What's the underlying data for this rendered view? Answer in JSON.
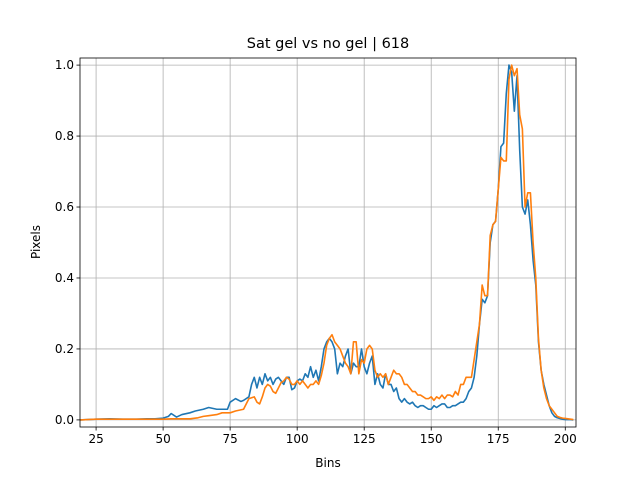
{
  "chart_data": {
    "type": "line",
    "title": "Sat gel vs no gel | 618",
    "xlabel": "Bins",
    "ylabel": "Pixels",
    "xlim": [
      19,
      204
    ],
    "ylim": [
      -0.02,
      1.02
    ],
    "xticks": [
      25,
      50,
      75,
      100,
      125,
      150,
      175,
      200
    ],
    "yticks": [
      0.0,
      0.2,
      0.4,
      0.6,
      0.8,
      1.0
    ],
    "xtick_labels": [
      "25",
      "50",
      "75",
      "100",
      "125",
      "150",
      "175",
      "200"
    ],
    "ytick_labels": [
      "0.0",
      "0.2",
      "0.4",
      "0.6",
      "0.8",
      "1.0"
    ],
    "grid": true,
    "series": [
      {
        "color": "#1f77b4",
        "x": [
          19,
          25,
          30,
          35,
          40,
          44,
          47,
          50,
          52,
          53,
          55,
          57,
          60,
          62,
          65,
          67,
          70,
          72,
          74,
          75,
          77,
          79,
          80,
          82,
          83,
          84,
          85,
          86,
          87,
          88,
          89,
          90,
          91,
          92,
          93,
          94,
          95,
          96,
          97,
          98,
          99,
          100,
          101,
          102,
          103,
          104,
          105,
          106,
          107,
          108,
          109,
          110,
          111,
          112,
          113,
          114,
          115,
          116,
          117,
          118,
          119,
          120,
          121,
          122,
          123,
          124,
          125,
          126,
          127,
          128,
          129,
          130,
          131,
          132,
          133,
          134,
          135,
          136,
          137,
          138,
          139,
          140,
          141,
          142,
          143,
          144,
          145,
          146,
          147,
          148,
          149,
          150,
          151,
          152,
          153,
          154,
          155,
          156,
          157,
          158,
          159,
          160,
          161,
          162,
          163,
          164,
          165,
          166,
          167,
          168,
          169,
          170,
          171,
          172,
          173,
          174,
          175,
          176,
          177,
          178,
          179,
          180,
          181,
          182,
          183,
          184,
          185,
          186,
          187,
          188,
          189,
          190,
          191,
          192,
          193,
          194,
          195,
          196,
          197,
          198,
          199,
          200,
          201,
          202,
          203
        ],
        "values": [
          0.0,
          0.002,
          0.003,
          0.002,
          0.002,
          0.003,
          0.003,
          0.005,
          0.01,
          0.018,
          0.008,
          0.015,
          0.02,
          0.025,
          0.03,
          0.035,
          0.03,
          0.03,
          0.03,
          0.05,
          0.06,
          0.052,
          0.055,
          0.065,
          0.1,
          0.12,
          0.09,
          0.12,
          0.1,
          0.13,
          0.11,
          0.12,
          0.1,
          0.115,
          0.12,
          0.11,
          0.1,
          0.12,
          0.12,
          0.085,
          0.09,
          0.11,
          0.115,
          0.11,
          0.13,
          0.12,
          0.15,
          0.12,
          0.14,
          0.11,
          0.15,
          0.2,
          0.22,
          0.23,
          0.22,
          0.2,
          0.13,
          0.16,
          0.15,
          0.18,
          0.2,
          0.13,
          0.16,
          0.15,
          0.15,
          0.2,
          0.15,
          0.13,
          0.16,
          0.18,
          0.1,
          0.13,
          0.1,
          0.09,
          0.13,
          0.1,
          0.1,
          0.08,
          0.09,
          0.06,
          0.05,
          0.06,
          0.05,
          0.045,
          0.05,
          0.04,
          0.035,
          0.04,
          0.04,
          0.035,
          0.03,
          0.03,
          0.04,
          0.035,
          0.04,
          0.045,
          0.045,
          0.035,
          0.035,
          0.04,
          0.04,
          0.045,
          0.05,
          0.05,
          0.06,
          0.08,
          0.09,
          0.12,
          0.18,
          0.27,
          0.34,
          0.33,
          0.35,
          0.5,
          0.55,
          0.56,
          0.65,
          0.77,
          0.78,
          0.92,
          1.0,
          0.98,
          0.87,
          0.97,
          0.76,
          0.6,
          0.58,
          0.62,
          0.55,
          0.45,
          0.38,
          0.22,
          0.14,
          0.1,
          0.07,
          0.04,
          0.02,
          0.01,
          0.006,
          0.004,
          0.002,
          0.001,
          0.001,
          0.001,
          0.0
        ]
      },
      {
        "color": "#ff7f0e",
        "x": [
          19,
          25,
          30,
          35,
          40,
          44,
          47,
          50,
          53,
          55,
          58,
          60,
          63,
          65,
          67,
          70,
          72,
          75,
          77,
          80,
          82,
          84,
          85,
          86,
          87,
          88,
          89,
          90,
          91,
          92,
          93,
          94,
          95,
          96,
          97,
          98,
          99,
          100,
          101,
          102,
          103,
          104,
          105,
          106,
          107,
          108,
          109,
          110,
          111,
          112,
          113,
          114,
          115,
          116,
          117,
          118,
          119,
          120,
          121,
          122,
          123,
          124,
          125,
          126,
          127,
          128,
          129,
          130,
          131,
          132,
          133,
          134,
          135,
          136,
          137,
          138,
          139,
          140,
          141,
          142,
          143,
          144,
          145,
          146,
          147,
          148,
          149,
          150,
          151,
          152,
          153,
          154,
          155,
          156,
          157,
          158,
          159,
          160,
          161,
          162,
          163,
          164,
          165,
          166,
          167,
          168,
          169,
          170,
          171,
          172,
          173,
          174,
          175,
          176,
          177,
          178,
          179,
          180,
          181,
          182,
          183,
          184,
          185,
          186,
          187,
          188,
          189,
          190,
          191,
          192,
          193,
          194,
          195,
          196,
          197,
          198,
          199,
          200,
          201,
          202,
          203
        ],
        "values": [
          0.0,
          0.002,
          0.002,
          0.002,
          0.002,
          0.002,
          0.002,
          0.002,
          0.003,
          0.003,
          0.003,
          0.003,
          0.006,
          0.01,
          0.012,
          0.015,
          0.02,
          0.02,
          0.025,
          0.03,
          0.06,
          0.065,
          0.05,
          0.045,
          0.065,
          0.09,
          0.1,
          0.095,
          0.08,
          0.075,
          0.09,
          0.105,
          0.11,
          0.12,
          0.115,
          0.1,
          0.1,
          0.11,
          0.1,
          0.11,
          0.1,
          0.09,
          0.1,
          0.1,
          0.11,
          0.1,
          0.125,
          0.16,
          0.21,
          0.23,
          0.24,
          0.22,
          0.21,
          0.2,
          0.18,
          0.16,
          0.15,
          0.13,
          0.22,
          0.22,
          0.13,
          0.17,
          0.16,
          0.2,
          0.21,
          0.2,
          0.14,
          0.12,
          0.13,
          0.12,
          0.13,
          0.1,
          0.12,
          0.14,
          0.13,
          0.13,
          0.12,
          0.1,
          0.1,
          0.09,
          0.08,
          0.08,
          0.07,
          0.07,
          0.065,
          0.06,
          0.06,
          0.065,
          0.055,
          0.065,
          0.06,
          0.07,
          0.06,
          0.07,
          0.07,
          0.065,
          0.08,
          0.07,
          0.1,
          0.1,
          0.12,
          0.12,
          0.12,
          0.17,
          0.22,
          0.27,
          0.38,
          0.35,
          0.35,
          0.52,
          0.55,
          0.56,
          0.65,
          0.74,
          0.73,
          0.73,
          0.96,
          1.0,
          0.97,
          0.99,
          0.86,
          0.82,
          0.6,
          0.64,
          0.64,
          0.5,
          0.4,
          0.23,
          0.14,
          0.09,
          0.06,
          0.04,
          0.03,
          0.02,
          0.01,
          0.007,
          0.005,
          0.004,
          0.003,
          0.002,
          0.001
        ]
      }
    ]
  }
}
